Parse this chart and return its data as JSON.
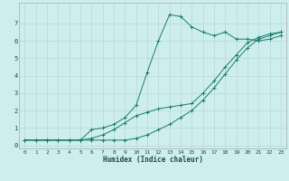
{
  "xlabel": "Humidex (Indice chaleur)",
  "bg_color": "#cdeeed",
  "grid_color": "#b8d8d6",
  "line_color": "#1a7a6e",
  "xlim": [
    -0.5,
    23.5
  ],
  "ylim": [
    -0.2,
    8.2
  ],
  "xticks": [
    0,
    1,
    2,
    3,
    4,
    5,
    6,
    7,
    8,
    9,
    10,
    11,
    12,
    13,
    14,
    15,
    16,
    17,
    18,
    19,
    20,
    21,
    22,
    23
  ],
  "yticks": [
    0,
    1,
    2,
    3,
    4,
    5,
    6,
    7
  ],
  "series1_x": [
    0,
    1,
    2,
    3,
    4,
    5,
    6,
    7,
    8,
    9,
    10,
    11,
    12,
    13,
    14,
    15,
    16,
    17,
    18,
    19,
    20,
    21,
    22,
    23
  ],
  "series1_y": [
    0.3,
    0.3,
    0.3,
    0.3,
    0.3,
    0.3,
    0.3,
    0.3,
    0.3,
    0.3,
    0.4,
    0.6,
    0.9,
    1.2,
    1.6,
    2.0,
    2.6,
    3.3,
    4.1,
    4.9,
    5.6,
    6.1,
    6.3,
    6.5
  ],
  "series2_x": [
    0,
    1,
    2,
    3,
    4,
    5,
    6,
    7,
    8,
    9,
    10,
    11,
    12,
    13,
    14,
    15,
    16,
    17,
    18,
    19,
    20,
    21,
    22,
    23
  ],
  "series2_y": [
    0.3,
    0.3,
    0.3,
    0.3,
    0.3,
    0.3,
    0.4,
    0.6,
    0.9,
    1.3,
    1.7,
    1.9,
    2.1,
    2.2,
    2.3,
    2.4,
    3.0,
    3.7,
    4.5,
    5.2,
    5.9,
    6.2,
    6.4,
    6.5
  ],
  "series3_x": [
    0,
    1,
    2,
    3,
    4,
    5,
    6,
    7,
    8,
    9,
    10,
    11,
    12,
    13,
    14,
    15,
    16,
    17,
    18,
    19,
    20,
    21,
    22,
    23
  ],
  "series3_y": [
    0.3,
    0.3,
    0.3,
    0.3,
    0.3,
    0.3,
    0.9,
    1.0,
    1.2,
    1.6,
    2.3,
    4.2,
    6.0,
    7.5,
    7.4,
    6.8,
    6.5,
    6.3,
    6.5,
    6.1,
    6.1,
    6.0,
    6.1,
    6.3
  ]
}
